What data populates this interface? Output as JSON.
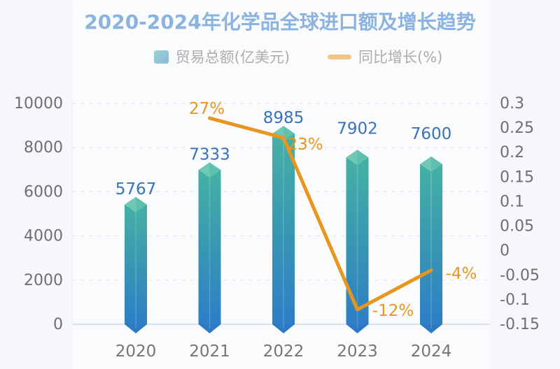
{
  "title": "2020-2024年化学品全球进口额及增长趋势",
  "legend": {
    "bar_label": "贸易总额(亿美元)",
    "line_label": "同比增长(%)"
  },
  "colors": {
    "background": "#f5f7fb",
    "title": "#2e75c5",
    "bar_gradient_top": "#45b1a4",
    "bar_gradient_bottom": "#2d7ec6",
    "bar_cap_light": "#70c8b4",
    "bar_cap_dark": "#5ec0ae",
    "bar_tip": "#2b7ac3",
    "line": "#e8961e",
    "value_label": "#3a72b8",
    "percent_label": "#e8961e",
    "axis_text": "#6f6f6f",
    "x_axis_text": "#757575",
    "gridline": "#e4e8ef",
    "zero_line": "#dbdfe6"
  },
  "chart_data": {
    "type": "combo",
    "subtypes": [
      "bar",
      "line"
    ],
    "categories": [
      "2020",
      "2021",
      "2022",
      "2023",
      "2024"
    ],
    "series": [
      {
        "name": "贸易总额(亿美元)",
        "type": "bar",
        "axis": "left",
        "values": [
          5767,
          7333,
          8985,
          7902,
          7600
        ],
        "labels": [
          "5767",
          "7333",
          "8985",
          "7902",
          "7600"
        ]
      },
      {
        "name": "同比增长(%)",
        "type": "line",
        "axis": "right",
        "values": [
          null,
          0.27,
          0.23,
          -0.12,
          -0.04
        ],
        "labels": [
          "27%",
          "23%",
          "-12%",
          "-4%"
        ]
      }
    ],
    "left_axis": {
      "min": 0,
      "max": 10000,
      "step": 2000,
      "ticks": [
        "0",
        "2000",
        "4000",
        "6000",
        "8000",
        "10000"
      ]
    },
    "right_axis": {
      "min": -0.15,
      "max": 0.3,
      "step": 0.05,
      "ticks": [
        "0.3",
        "0.25",
        "0.2",
        "0.15",
        "0.1",
        "0.05",
        "0",
        "-0.05",
        "-0.1",
        "-0.15"
      ]
    },
    "grid": "horizontal dashed",
    "legend_position": "top"
  }
}
